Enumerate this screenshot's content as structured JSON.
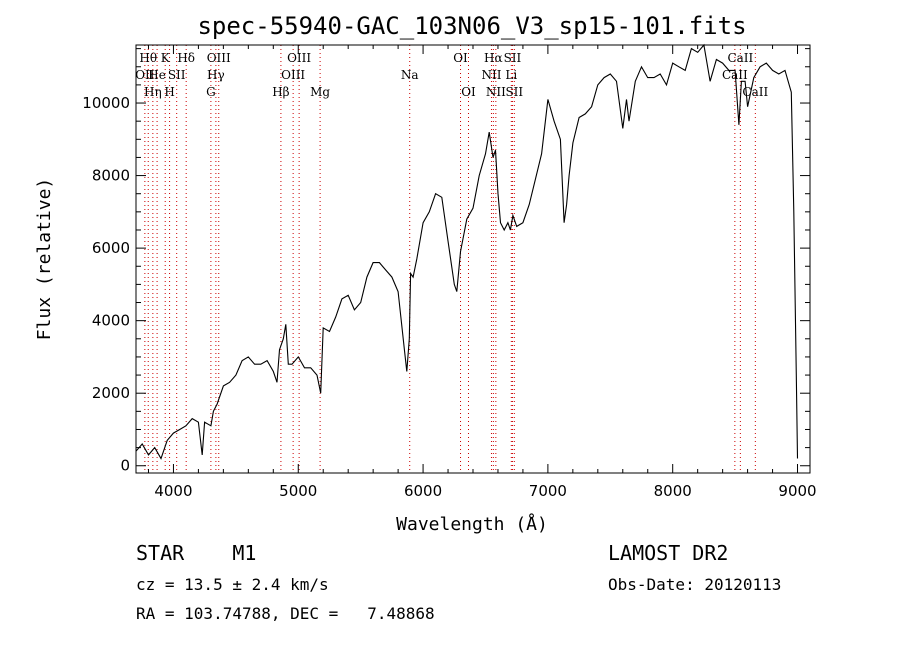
{
  "chart_data": {
    "type": "line",
    "title": "spec-55940-GAC_103N06_V3_sp15-101.fits",
    "xlabel": "Wavelength (Å)",
    "ylabel": "Flux (relative)",
    "xlim": [
      3700,
      9100
    ],
    "ylim": [
      -200,
      11600
    ],
    "xticks": [
      4000,
      5000,
      6000,
      7000,
      8000,
      9000
    ],
    "yticks": [
      0,
      2000,
      4000,
      6000,
      8000,
      10000
    ],
    "grid": false,
    "series": [
      {
        "x": [
          3700,
          3750,
          3800,
          3850,
          3900,
          3950,
          4000,
          4050,
          4100,
          4150,
          4200,
          4230,
          4250,
          4300,
          4320,
          4350,
          4400,
          4450,
          4500,
          4550,
          4600,
          4650,
          4700,
          4750,
          4800,
          4830,
          4850,
          4880,
          4900,
          4920,
          4950,
          5000,
          5050,
          5100,
          5150,
          5180,
          5200,
          5250,
          5300,
          5350,
          5400,
          5450,
          5500,
          5550,
          5600,
          5650,
          5700,
          5750,
          5800,
          5850,
          5870,
          5890,
          5900,
          5920,
          5950,
          6000,
          6050,
          6100,
          6150,
          6200,
          6250,
          6270,
          6300,
          6350,
          6400,
          6450,
          6500,
          6530,
          6560,
          6580,
          6600,
          6620,
          6650,
          6680,
          6700,
          6720,
          6750,
          6800,
          6850,
          6900,
          6950,
          7000,
          7050,
          7100,
          7130,
          7150,
          7170,
          7200,
          7250,
          7300,
          7350,
          7400,
          7450,
          7500,
          7550,
          7600,
          7630,
          7650,
          7700,
          7750,
          7800,
          7850,
          7900,
          7950,
          8000,
          8050,
          8100,
          8150,
          8200,
          8250,
          8300,
          8350,
          8400,
          8450,
          8500,
          8530,
          8550,
          8580,
          8600,
          8650,
          8700,
          8750,
          8800,
          8850,
          8900,
          8950,
          8970,
          8990,
          9000
        ],
        "y": [
          400,
          600,
          300,
          500,
          200,
          700,
          900,
          1000,
          1100,
          1300,
          1200,
          300,
          1200,
          1100,
          1500,
          1700,
          2200,
          2300,
          2500,
          2900,
          3000,
          2800,
          2800,
          2900,
          2600,
          2300,
          3200,
          3500,
          3900,
          2800,
          2800,
          3000,
          2700,
          2700,
          2500,
          2000,
          3800,
          3700,
          4100,
          4600,
          4700,
          4300,
          4500,
          5200,
          5600,
          5600,
          5400,
          5200,
          4800,
          3200,
          2600,
          3500,
          5300,
          5200,
          5700,
          6700,
          7000,
          7500,
          7400,
          6200,
          5000,
          4800,
          5900,
          6800,
          7100,
          8000,
          8600,
          9200,
          8500,
          8700,
          7500,
          6700,
          6500,
          6700,
          6500,
          6900,
          6600,
          6700,
          7200,
          7900,
          8600,
          10100,
          9500,
          9000,
          6700,
          7200,
          8000,
          8900,
          9600,
          9700,
          9900,
          10500,
          10700,
          10800,
          10600,
          9300,
          10100,
          9500,
          10600,
          11000,
          10700,
          10700,
          10800,
          10500,
          11100,
          11000,
          10900,
          11500,
          11400,
          11600,
          10600,
          11200,
          11100,
          10900,
          10900,
          9400,
          10600,
          10600,
          9900,
          10700,
          11000,
          11100,
          10900,
          10800,
          10900,
          10300,
          7000,
          2500,
          200
        ]
      }
    ],
    "lines": [
      {
        "x": 3771,
        "label": "OII",
        "row": 2
      },
      {
        "x": 3798,
        "label": "Hθ",
        "row": 1
      },
      {
        "x": 3835,
        "label": "Hη",
        "row": 3
      },
      {
        "x": 3869,
        "label": "He",
        "row": 2
      },
      {
        "x": 3934,
        "label": "K",
        "row": 1
      },
      {
        "x": 3969,
        "label": "H",
        "row": 3
      },
      {
        "x": 4026,
        "label": "SII",
        "row": 2
      },
      {
        "x": 4102,
        "label": "Hδ",
        "row": 1
      },
      {
        "x": 4300,
        "label": "G",
        "row": 3
      },
      {
        "x": 4340,
        "label": "Hγ",
        "row": 2
      },
      {
        "x": 4363,
        "label": "OIII",
        "row": 1
      },
      {
        "x": 4861,
        "label": "Hβ",
        "row": 3
      },
      {
        "x": 4959,
        "label": "OIII",
        "row": 2
      },
      {
        "x": 5007,
        "label": "OIII",
        "row": 1
      },
      {
        "x": 5175,
        "label": "Mg",
        "row": 3
      },
      {
        "x": 5893,
        "label": "Na",
        "row": 2
      },
      {
        "x": 6300,
        "label": "OI",
        "row": 1
      },
      {
        "x": 6364,
        "label": "OI",
        "row": 3
      },
      {
        "x": 6548,
        "label": "NII",
        "row": 2
      },
      {
        "x": 6563,
        "label": "Hα",
        "row": 1
      },
      {
        "x": 6583,
        "label": "NII",
        "row": 3
      },
      {
        "x": 6707,
        "label": "Li",
        "row": 2
      },
      {
        "x": 6716,
        "label": "SII",
        "row": 1
      },
      {
        "x": 6731,
        "label": "SII",
        "row": 3
      },
      {
        "x": 8498,
        "label": "CaII",
        "row": 2
      },
      {
        "x": 8542,
        "label": "CaII",
        "row": 1
      },
      {
        "x": 8662,
        "label": "CaII",
        "row": 3
      }
    ]
  },
  "info": {
    "object": "STAR    M1",
    "survey": "LAMOST DR2",
    "cz": "cz = 13.5 ± 2.4 km/s",
    "obs_date": "Obs-Date: 20120113",
    "coords": "RA = 103.74788, DEC =   7.48868"
  },
  "colors": {
    "line": "#000000",
    "marker": "#cc0000"
  }
}
